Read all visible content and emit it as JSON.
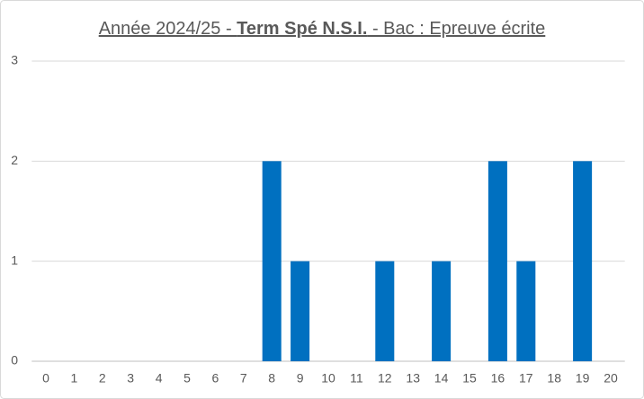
{
  "chart_data": {
    "type": "bar",
    "title": {
      "parts": [
        "Année 2024/25 - ",
        "Term Spé N.S.I.",
        " - Bac : Epreuve écrite"
      ],
      "bold": [
        false,
        true,
        false
      ]
    },
    "categories": [
      "0",
      "1",
      "2",
      "3",
      "4",
      "5",
      "6",
      "7",
      "8",
      "9",
      "10",
      "11",
      "12",
      "13",
      "14",
      "15",
      "16",
      "17",
      "18",
      "19",
      "20"
    ],
    "values": [
      0,
      0,
      0,
      0,
      0,
      0,
      0,
      0,
      2,
      1,
      0,
      0,
      1,
      0,
      1,
      0,
      2,
      1,
      0,
      2,
      0
    ],
    "color": "#0070c0",
    "ylim": [
      0,
      3
    ],
    "yticks": [
      0,
      1,
      2,
      3
    ],
    "grid": true
  }
}
